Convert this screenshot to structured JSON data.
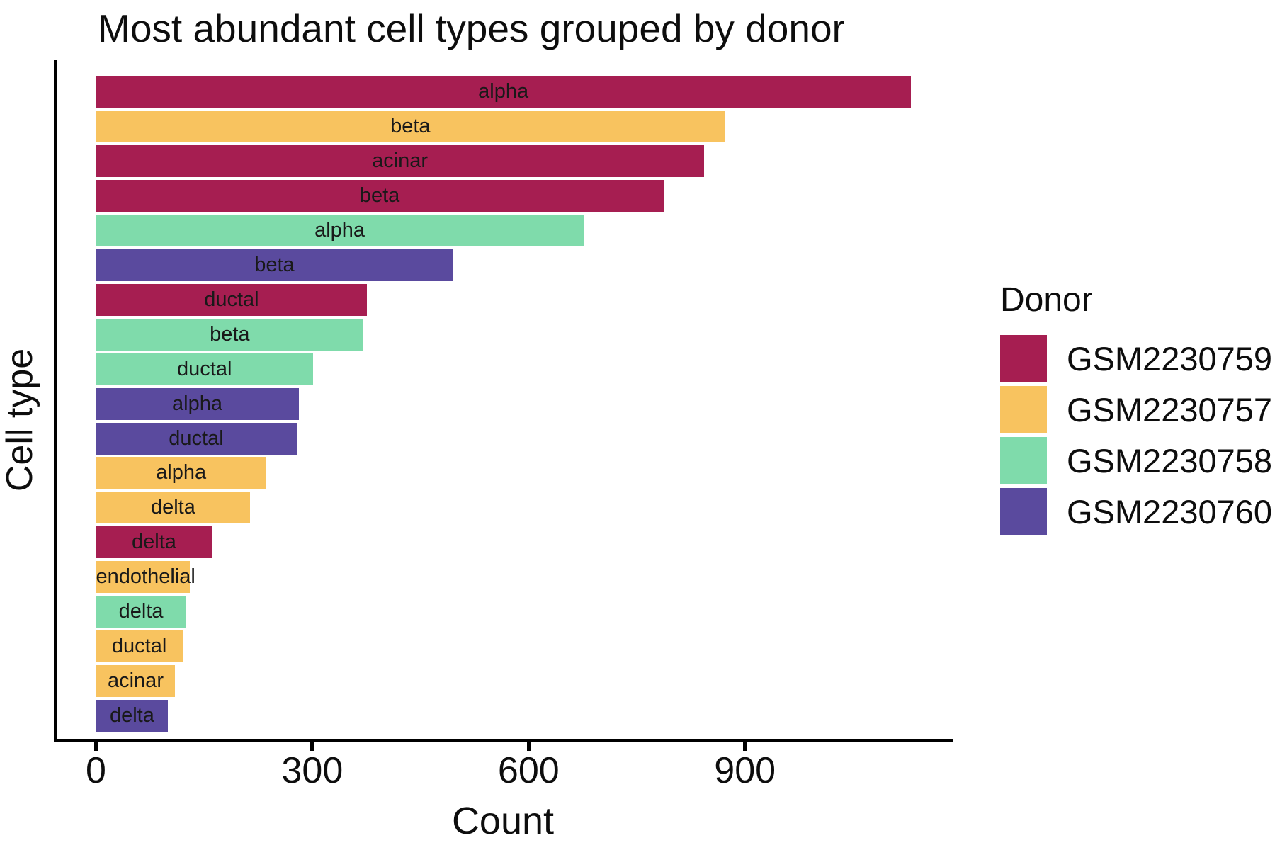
{
  "chart_data": {
    "type": "bar",
    "orientation": "horizontal",
    "title": "Most abundant cell types grouped by donor",
    "xlabel": "Count",
    "ylabel": "Cell type",
    "legend_title": "Donor",
    "legend_position": "right",
    "grid": false,
    "xlim": [
      0,
      1130
    ],
    "x_ticks": [
      0,
      300,
      600,
      900
    ],
    "bar_label_text_color": "#191919",
    "axis_color": "#000000",
    "donors": [
      {
        "id": "GSM2230759",
        "color": "#A61E51"
      },
      {
        "id": "GSM2230757",
        "color": "#F8C35F"
      },
      {
        "id": "GSM2230758",
        "color": "#7FDBAB"
      },
      {
        "id": "GSM2230760",
        "color": "#5A4A9E"
      }
    ],
    "bars": [
      {
        "cell_type": "alpha",
        "donor": "GSM2230759",
        "count": 1130
      },
      {
        "cell_type": "beta",
        "donor": "GSM2230757",
        "count": 872
      },
      {
        "cell_type": "acinar",
        "donor": "GSM2230759",
        "count": 843
      },
      {
        "cell_type": "beta",
        "donor": "GSM2230759",
        "count": 787
      },
      {
        "cell_type": "alpha",
        "donor": "GSM2230758",
        "count": 676
      },
      {
        "cell_type": "beta",
        "donor": "GSM2230760",
        "count": 495
      },
      {
        "cell_type": "ductal",
        "donor": "GSM2230759",
        "count": 376
      },
      {
        "cell_type": "beta",
        "donor": "GSM2230758",
        "count": 371
      },
      {
        "cell_type": "ductal",
        "donor": "GSM2230758",
        "count": 301
      },
      {
        "cell_type": "alpha",
        "donor": "GSM2230760",
        "count": 281
      },
      {
        "cell_type": "ductal",
        "donor": "GSM2230760",
        "count": 278
      },
      {
        "cell_type": "alpha",
        "donor": "GSM2230757",
        "count": 236
      },
      {
        "cell_type": "delta",
        "donor": "GSM2230757",
        "count": 214
      },
      {
        "cell_type": "delta",
        "donor": "GSM2230759",
        "count": 161
      },
      {
        "cell_type": "endothelial",
        "donor": "GSM2230757",
        "count": 130
      },
      {
        "cell_type": "delta",
        "donor": "GSM2230758",
        "count": 125
      },
      {
        "cell_type": "ductal",
        "donor": "GSM2230757",
        "count": 120
      },
      {
        "cell_type": "acinar",
        "donor": "GSM2230757",
        "count": 110
      },
      {
        "cell_type": "delta",
        "donor": "GSM2230760",
        "count": 100
      }
    ]
  }
}
